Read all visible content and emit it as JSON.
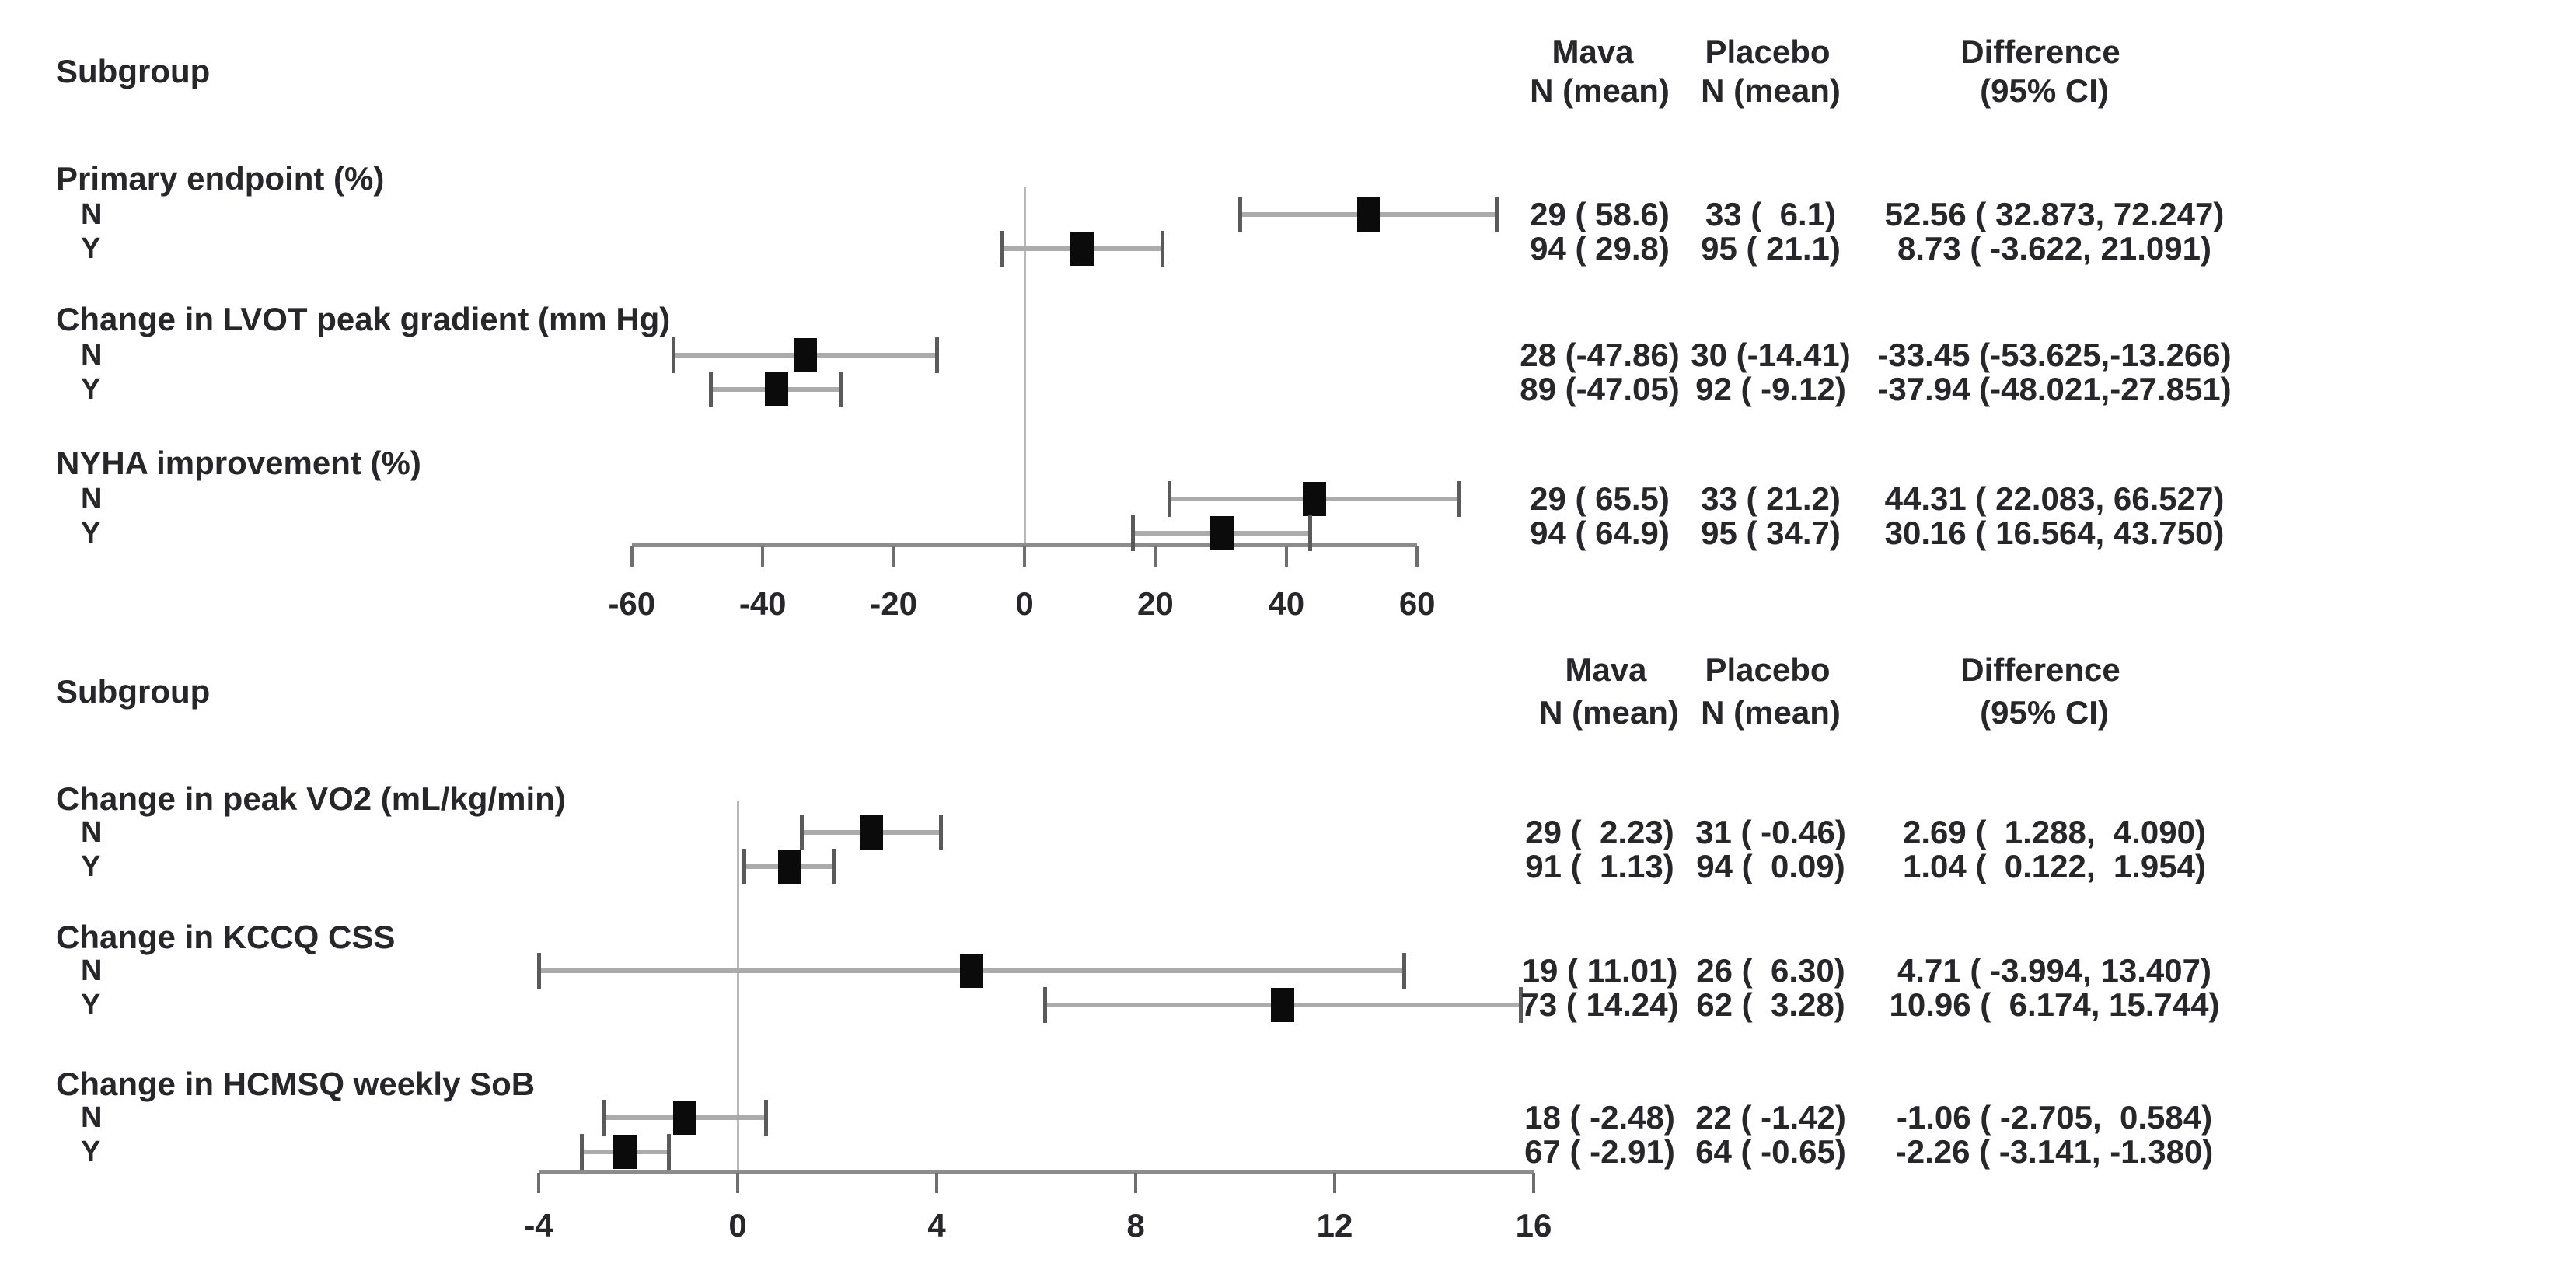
{
  "chart_data": [
    {
      "type": "scatter",
      "variant": "forest-plot",
      "title": "",
      "xlabel": "",
      "xlim": [
        -60,
        60
      ],
      "xticks": [
        -60,
        -40,
        -20,
        0,
        20,
        40,
        60
      ],
      "refline_x": 0,
      "grid": false,
      "legend": "none",
      "header": {
        "subgroup": "Subgroup",
        "col1": [
          "Mava",
          "N (mean)"
        ],
        "col2": [
          "Placebo",
          "N (mean)"
        ],
        "col3": [
          "Difference",
          "(95% CI)"
        ]
      },
      "groups": [
        {
          "label": "Primary endpoint (%)",
          "rows": [
            {
              "level": "N",
              "mava": "29 ( 58.6)",
              "placebo": "33 (  6.1)",
              "difference": "52.56 ( 32.873, 72.247)",
              "mava_n": 29,
              "mava_mean": 58.6,
              "placebo_n": 33,
              "placebo_mean": 6.1,
              "est": 52.56,
              "lo": 32.873,
              "hi": 72.247
            },
            {
              "level": "Y",
              "mava": "94 ( 29.8)",
              "placebo": "95 ( 21.1)",
              "difference": "8.73 ( -3.622, 21.091)",
              "mava_n": 94,
              "mava_mean": 29.8,
              "placebo_n": 95,
              "placebo_mean": 21.1,
              "est": 8.73,
              "lo": -3.622,
              "hi": 21.091
            }
          ]
        },
        {
          "label": "Change in LVOT peak gradient (mm Hg)",
          "rows": [
            {
              "level": "N",
              "mava": "28 (-47.86)",
              "placebo": "30 (-14.41)",
              "difference": "-33.45 (-53.625,-13.266)",
              "mava_n": 28,
              "mava_mean": -47.86,
              "placebo_n": 30,
              "placebo_mean": -14.41,
              "est": -33.45,
              "lo": -53.625,
              "hi": -13.266
            },
            {
              "level": "Y",
              "mava": "89 (-47.05)",
              "placebo": "92 ( -9.12)",
              "difference": "-37.94 (-48.021,-27.851)",
              "mava_n": 89,
              "mava_mean": -47.05,
              "placebo_n": 92,
              "placebo_mean": -9.12,
              "est": -37.94,
              "lo": -48.021,
              "hi": -27.851
            }
          ]
        },
        {
          "label": "NYHA improvement (%)",
          "rows": [
            {
              "level": "N",
              "mava": "29 ( 65.5)",
              "placebo": "33 ( 21.2)",
              "difference": "44.31 ( 22.083, 66.527)",
              "mava_n": 29,
              "mava_mean": 65.5,
              "placebo_n": 33,
              "placebo_mean": 21.2,
              "est": 44.31,
              "lo": 22.083,
              "hi": 66.527
            },
            {
              "level": "Y",
              "mava": "94 ( 64.9)",
              "placebo": "95 ( 34.7)",
              "difference": "30.16 ( 16.564, 43.750)",
              "mava_n": 94,
              "mava_mean": 64.9,
              "placebo_n": 95,
              "placebo_mean": 34.7,
              "est": 30.16,
              "lo": 16.564,
              "hi": 43.75
            }
          ]
        }
      ]
    },
    {
      "type": "scatter",
      "variant": "forest-plot",
      "title": "",
      "xlabel": "",
      "xlim": [
        -4,
        16
      ],
      "xticks": [
        -4,
        0,
        4,
        8,
        12,
        16
      ],
      "refline_x": 0,
      "grid": false,
      "legend": "none",
      "header": {
        "subgroup": "Subgroup",
        "col1": [
          "Mava",
          "N (mean)"
        ],
        "col2": [
          "Placebo",
          "N (mean)"
        ],
        "col3": [
          "Difference",
          "(95% CI)"
        ]
      },
      "groups": [
        {
          "label": "Change in peak VO2 (mL/kg/min)",
          "rows": [
            {
              "level": "N",
              "mava": "29 (  2.23)",
              "placebo": "31 ( -0.46)",
              "difference": "2.69 (  1.288,  4.090)",
              "mava_n": 29,
              "mava_mean": 2.23,
              "placebo_n": 31,
              "placebo_mean": -0.46,
              "est": 2.69,
              "lo": 1.288,
              "hi": 4.09
            },
            {
              "level": "Y",
              "mava": "91 (  1.13)",
              "placebo": "94 (  0.09)",
              "difference": "1.04 (  0.122,  1.954)",
              "mava_n": 91,
              "mava_mean": 1.13,
              "placebo_n": 94,
              "placebo_mean": 0.09,
              "est": 1.04,
              "lo": 0.122,
              "hi": 1.954
            }
          ]
        },
        {
          "label": "Change in KCCQ CSS",
          "rows": [
            {
              "level": "N",
              "mava": "19 ( 11.01)",
              "placebo": "26 (  6.30)",
              "difference": "4.71 ( -3.994, 13.407)",
              "mava_n": 19,
              "mava_mean": 11.01,
              "placebo_n": 26,
              "placebo_mean": 6.3,
              "est": 4.71,
              "lo": -3.994,
              "hi": 13.407
            },
            {
              "level": "Y",
              "mava": "73 ( 14.24)",
              "placebo": "62 (  3.28)",
              "difference": "10.96 (  6.174, 15.744)",
              "mava_n": 73,
              "mava_mean": 14.24,
              "placebo_n": 62,
              "placebo_mean": 3.28,
              "est": 10.96,
              "lo": 6.174,
              "hi": 15.744
            }
          ]
        },
        {
          "label": "Change in HCMSQ weekly SoB",
          "rows": [
            {
              "level": "N",
              "mava": "18 ( -2.48)",
              "placebo": "22 ( -1.42)",
              "difference": "-1.06 ( -2.705,  0.584)",
              "mava_n": 18,
              "mava_mean": -2.48,
              "placebo_n": 22,
              "placebo_mean": -1.42,
              "est": -1.06,
              "lo": -2.705,
              "hi": 0.584
            },
            {
              "level": "Y",
              "mava": "67 ( -2.91)",
              "placebo": "64 ( -0.65)",
              "difference": "-2.26 ( -3.141, -1.380)",
              "mava_n": 67,
              "mava_mean": -2.91,
              "placebo_n": 64,
              "placebo_mean": -0.65,
              "est": -2.26,
              "lo": -3.141,
              "hi": -1.38
            }
          ]
        }
      ]
    }
  ],
  "colors": {
    "text": "#26262b",
    "axis_line": "#8c8c8c",
    "ci_line": "#ababab",
    "ci_cap": "#5a5a5a",
    "marker": "#0b0b0b",
    "refline": "#b8b8b8",
    "background": "#ffffff"
  }
}
